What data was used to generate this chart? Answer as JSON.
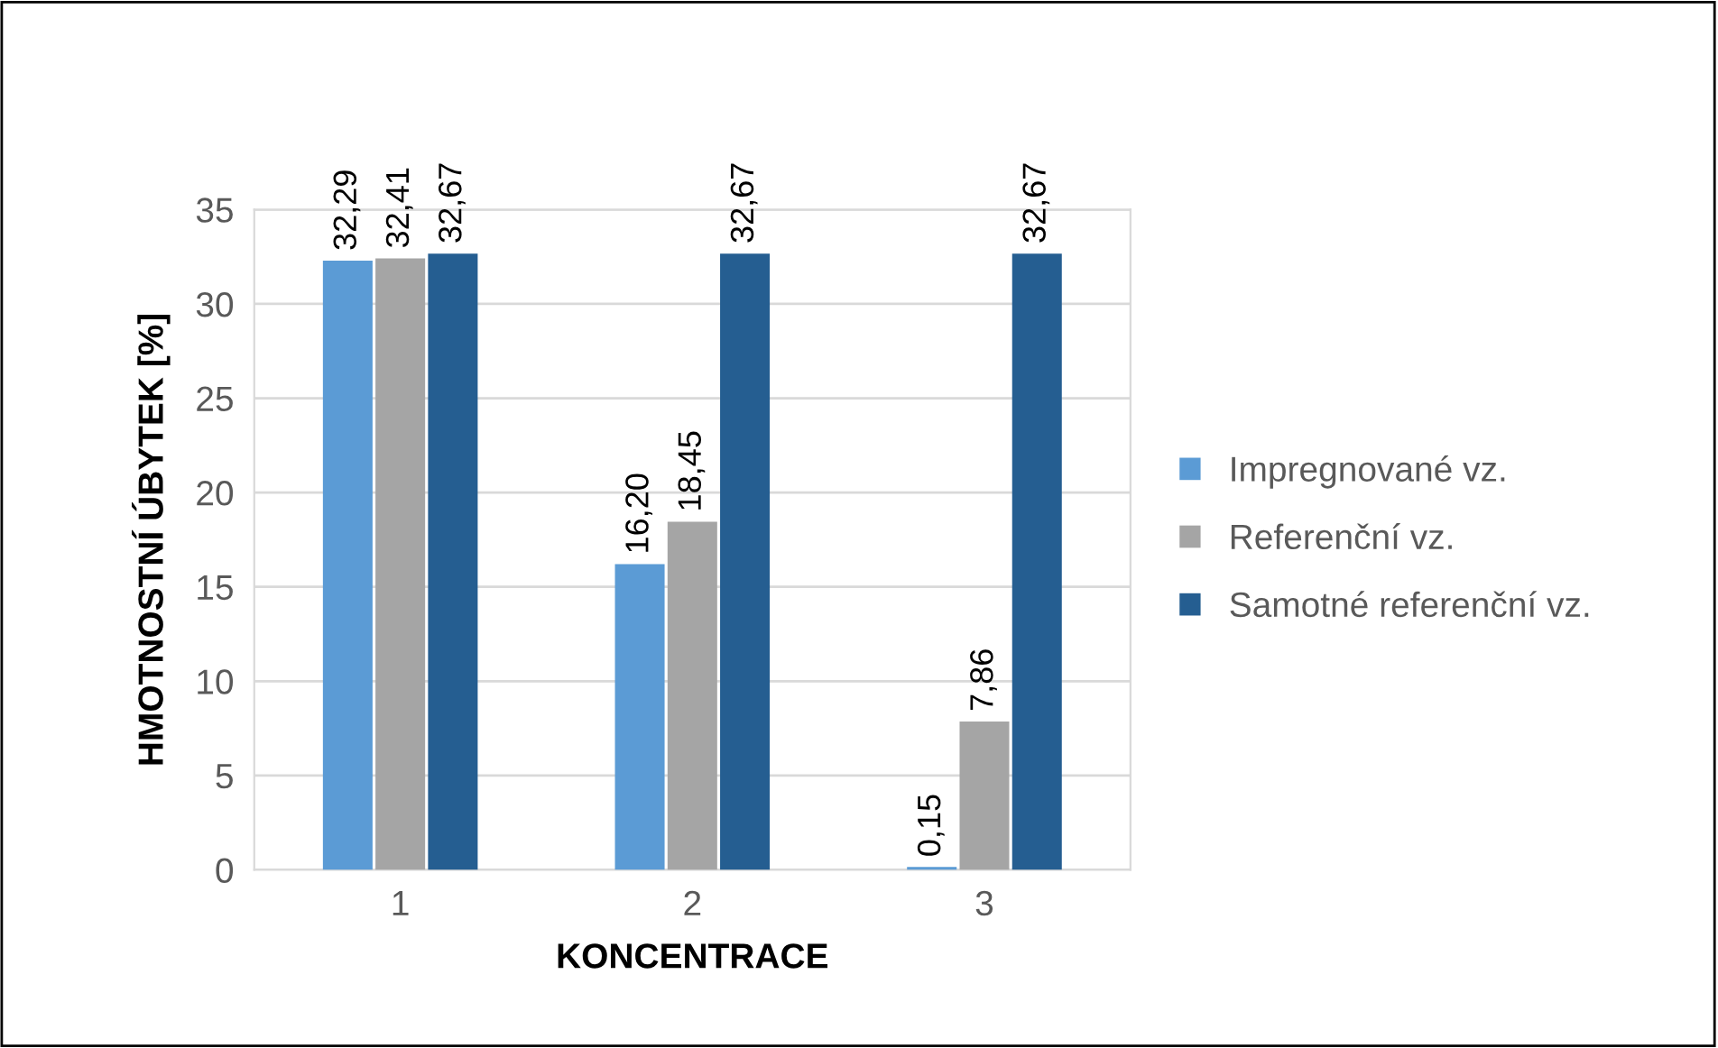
{
  "chart_data": {
    "type": "bar",
    "xlabel": "KONCENTRACE",
    "ylabel": "HMOTNOSTNÍ ÚBYTEK [%]",
    "categories": [
      "1",
      "2",
      "3"
    ],
    "series": [
      {
        "name": "Impregnované vz.",
        "color": "#5b9bd5",
        "values": [
          32.29,
          16.2,
          0.15
        ],
        "value_labels": [
          "32,29",
          "16,20",
          "0,15"
        ]
      },
      {
        "name": "Referenční vz.",
        "color": "#a5a5a5",
        "values": [
          32.41,
          18.45,
          7.86
        ],
        "value_labels": [
          "32,41",
          "18,45",
          "7,86"
        ]
      },
      {
        "name": "Samotné referenční vz.",
        "color": "#255e91",
        "values": [
          32.67,
          32.67,
          32.67
        ],
        "value_labels": [
          "32,67",
          "32,67",
          "32,67"
        ]
      }
    ],
    "ylim": [
      0,
      35
    ],
    "yticks": [
      0,
      5,
      10,
      15,
      20,
      25,
      30,
      35
    ],
    "grid": "y",
    "legend": "right"
  }
}
